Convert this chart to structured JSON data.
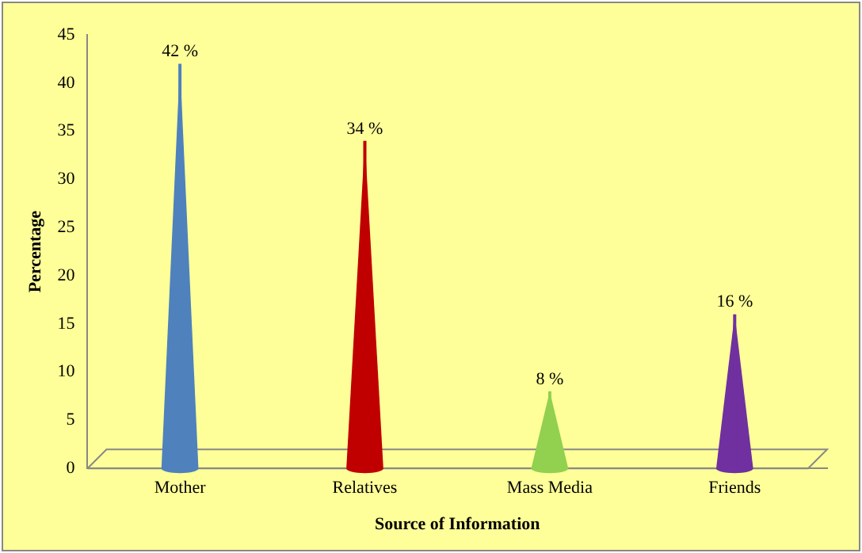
{
  "chart_data": {
    "type": "bar",
    "xlabel": "Source of Information",
    "ylabel": "Percentage",
    "categories": [
      "Mother",
      "Relatives",
      "Mass Media",
      "Friends"
    ],
    "values": [
      42,
      34,
      8,
      16
    ],
    "colors": [
      "#4f81bd",
      "#c00000",
      "#92d050",
      "#7030a0"
    ],
    "value_labels": [
      "42 %",
      "34 %",
      "8 %",
      "16 %"
    ],
    "ylim": [
      0,
      45
    ],
    "yticks": [
      0,
      5,
      10,
      15,
      20,
      25,
      30,
      35,
      40,
      45
    ],
    "grid": false,
    "legend": false
  }
}
